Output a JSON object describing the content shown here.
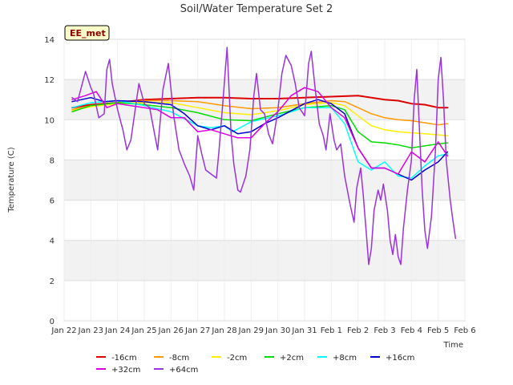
{
  "chart_data": {
    "type": "line",
    "title": "Soil/Water Temperature Set 2",
    "xlabel": "Time",
    "ylabel": "Temperature (C)",
    "badge": "EE_met",
    "ylim": [
      0,
      14
    ],
    "yticks": [
      0,
      2,
      4,
      6,
      8,
      10,
      12,
      14
    ],
    "xlim": [
      0,
      15
    ],
    "xticks": [
      {
        "v": 0,
        "label": "Jan 22"
      },
      {
        "v": 1,
        "label": "Jan 23"
      },
      {
        "v": 2,
        "label": "Jan 24"
      },
      {
        "v": 3,
        "label": "Jan 25"
      },
      {
        "v": 4,
        "label": "Jan 26"
      },
      {
        "v": 5,
        "label": "Jan 27"
      },
      {
        "v": 6,
        "label": "Jan 28"
      },
      {
        "v": 7,
        "label": "Jan 29"
      },
      {
        "v": 8,
        "label": "Jan 30"
      },
      {
        "v": 9,
        "label": "Jan 31"
      },
      {
        "v": 10,
        "label": "Feb 1"
      },
      {
        "v": 11,
        "label": "Feb 2"
      },
      {
        "v": 12,
        "label": "Feb 3"
      },
      {
        "v": 13,
        "label": "Feb 4"
      },
      {
        "v": 14,
        "label": "Feb 5"
      },
      {
        "v": 15,
        "label": "Feb 6"
      }
    ],
    "grid": true,
    "legend_position": "bottom",
    "series": [
      {
        "name": "-16cm",
        "color": "#dd0000",
        "width": 2,
        "points": [
          [
            0.3,
            10.6
          ],
          [
            1,
            10.75
          ],
          [
            2,
            10.85
          ],
          [
            3,
            11.0
          ],
          [
            4,
            11.05
          ],
          [
            5,
            11.1
          ],
          [
            6,
            11.1
          ],
          [
            7,
            11.05
          ],
          [
            8,
            11.05
          ],
          [
            9,
            11.1
          ],
          [
            10,
            11.15
          ],
          [
            11,
            11.2
          ],
          [
            12,
            11.0
          ],
          [
            12.5,
            10.95
          ],
          [
            13,
            10.8
          ],
          [
            13.5,
            10.75
          ],
          [
            14,
            10.6
          ],
          [
            14.35,
            10.6
          ]
        ]
      },
      {
        "name": "-8cm",
        "color": "#ff9900",
        "width": 1.5,
        "points": [
          [
            0.3,
            10.5
          ],
          [
            1,
            10.7
          ],
          [
            2,
            10.85
          ],
          [
            3,
            10.95
          ],
          [
            4,
            10.95
          ],
          [
            5,
            10.9
          ],
          [
            6,
            10.7
          ],
          [
            7,
            10.55
          ],
          [
            8,
            10.6
          ],
          [
            9,
            10.8
          ],
          [
            10,
            10.95
          ],
          [
            10.5,
            10.9
          ],
          [
            11,
            10.6
          ],
          [
            11.5,
            10.3
          ],
          [
            12,
            10.1
          ],
          [
            12.5,
            10.0
          ],
          [
            13,
            9.95
          ],
          [
            13.5,
            9.85
          ],
          [
            14,
            9.75
          ],
          [
            14.35,
            9.8
          ]
        ]
      },
      {
        "name": "-2cm",
        "color": "#ffee00",
        "width": 1.5,
        "points": [
          [
            0.3,
            10.45
          ],
          [
            1,
            10.65
          ],
          [
            2,
            10.8
          ],
          [
            3,
            10.85
          ],
          [
            4,
            10.85
          ],
          [
            5,
            10.6
          ],
          [
            6,
            10.35
          ],
          [
            7,
            10.25
          ],
          [
            8,
            10.45
          ],
          [
            9,
            10.75
          ],
          [
            10,
            10.85
          ],
          [
            10.5,
            10.7
          ],
          [
            11,
            10.2
          ],
          [
            11.5,
            9.7
          ],
          [
            12,
            9.5
          ],
          [
            12.5,
            9.4
          ],
          [
            13,
            9.35
          ],
          [
            13.5,
            9.3
          ],
          [
            14,
            9.25
          ],
          [
            14.35,
            9.2
          ]
        ]
      },
      {
        "name": "+2cm",
        "color": "#00dd00",
        "width": 1.5,
        "points": [
          [
            0.3,
            10.4
          ],
          [
            1,
            10.7
          ],
          [
            2,
            10.85
          ],
          [
            3,
            10.75
          ],
          [
            4,
            10.6
          ],
          [
            5,
            10.35
          ],
          [
            6,
            10.0
          ],
          [
            7,
            9.95
          ],
          [
            8,
            10.3
          ],
          [
            9,
            10.6
          ],
          [
            10,
            10.7
          ],
          [
            10.5,
            10.5
          ],
          [
            11,
            9.4
          ],
          [
            11.5,
            8.9
          ],
          [
            12,
            8.85
          ],
          [
            12.5,
            8.75
          ],
          [
            13,
            8.6
          ],
          [
            13.5,
            8.7
          ],
          [
            14,
            8.8
          ],
          [
            14.35,
            8.85
          ]
        ]
      },
      {
        "name": "+8cm",
        "color": "#00ffff",
        "width": 1.5,
        "points": [
          [
            0.3,
            10.6
          ],
          [
            1,
            10.85
          ],
          [
            2,
            10.95
          ],
          [
            3,
            10.7
          ],
          [
            4,
            10.4
          ],
          [
            5,
            9.7
          ],
          [
            5.5,
            9.6
          ],
          [
            6,
            9.7
          ],
          [
            6.3,
            9.4
          ],
          [
            7,
            9.9
          ],
          [
            8,
            10.2
          ],
          [
            9,
            10.6
          ],
          [
            10,
            10.6
          ],
          [
            10.5,
            9.8
          ],
          [
            11,
            7.9
          ],
          [
            11.5,
            7.5
          ],
          [
            12,
            7.9
          ],
          [
            12.5,
            7.2
          ],
          [
            13,
            7.1
          ],
          [
            13.5,
            7.7
          ],
          [
            14,
            8.2
          ],
          [
            14.35,
            8.3
          ]
        ]
      },
      {
        "name": "+16cm",
        "color": "#0000cc",
        "width": 1.5,
        "points": [
          [
            0.3,
            10.9
          ],
          [
            1,
            11.1
          ],
          [
            1.5,
            10.9
          ],
          [
            2,
            10.95
          ],
          [
            3,
            10.9
          ],
          [
            4,
            10.75
          ],
          [
            4.5,
            10.3
          ],
          [
            5,
            9.7
          ],
          [
            5.5,
            9.5
          ],
          [
            6,
            9.7
          ],
          [
            6.5,
            9.3
          ],
          [
            7,
            9.4
          ],
          [
            7.5,
            9.8
          ],
          [
            8,
            10.1
          ],
          [
            9,
            10.8
          ],
          [
            9.5,
            11.0
          ],
          [
            10,
            10.8
          ],
          [
            10.5,
            10.3
          ],
          [
            11,
            8.6
          ],
          [
            11.5,
            7.6
          ],
          [
            12,
            7.6
          ],
          [
            12.5,
            7.3
          ],
          [
            13,
            7.0
          ],
          [
            13.5,
            7.5
          ],
          [
            14,
            7.9
          ],
          [
            14.35,
            8.4
          ]
        ]
      },
      {
        "name": "+32cm",
        "color": "#dd00dd",
        "width": 1.5,
        "points": [
          [
            0.3,
            11.0
          ],
          [
            0.8,
            11.2
          ],
          [
            1.2,
            11.4
          ],
          [
            1.6,
            10.6
          ],
          [
            2,
            10.8
          ],
          [
            2.5,
            10.7
          ],
          [
            3,
            10.6
          ],
          [
            3.5,
            10.5
          ],
          [
            4,
            10.1
          ],
          [
            4.5,
            10.1
          ],
          [
            5,
            9.4
          ],
          [
            5.5,
            9.5
          ],
          [
            6,
            9.3
          ],
          [
            6.5,
            9.1
          ],
          [
            7,
            9.1
          ],
          [
            7.5,
            9.8
          ],
          [
            8,
            10.4
          ],
          [
            8.5,
            11.2
          ],
          [
            9,
            11.6
          ],
          [
            9.5,
            11.4
          ],
          [
            10,
            10.6
          ],
          [
            10.5,
            10.1
          ],
          [
            11,
            8.6
          ],
          [
            11.5,
            7.6
          ],
          [
            12,
            7.6
          ],
          [
            12.5,
            7.3
          ],
          [
            13,
            8.4
          ],
          [
            13.5,
            7.9
          ],
          [
            14,
            8.9
          ],
          [
            14.35,
            8.2
          ]
        ]
      },
      {
        "name": "+64cm",
        "color": "#9933dd",
        "width": 1.5,
        "points": [
          [
            0.3,
            11.1
          ],
          [
            0.5,
            10.9
          ],
          [
            0.8,
            12.4
          ],
          [
            1.0,
            11.6
          ],
          [
            1.1,
            11.3
          ],
          [
            1.3,
            10.1
          ],
          [
            1.5,
            10.3
          ],
          [
            1.6,
            12.5
          ],
          [
            1.7,
            13.0
          ],
          [
            1.8,
            11.8
          ],
          [
            2.0,
            10.5
          ],
          [
            2.2,
            9.5
          ],
          [
            2.35,
            8.5
          ],
          [
            2.5,
            9.0
          ],
          [
            2.8,
            11.8
          ],
          [
            3.0,
            10.8
          ],
          [
            3.2,
            10.6
          ],
          [
            3.4,
            9.2
          ],
          [
            3.5,
            8.5
          ],
          [
            3.7,
            11.5
          ],
          [
            3.9,
            12.8
          ],
          [
            4.1,
            10.2
          ],
          [
            4.3,
            8.5
          ],
          [
            4.5,
            7.8
          ],
          [
            4.7,
            7.2
          ],
          [
            4.85,
            6.5
          ],
          [
            5.0,
            9.2
          ],
          [
            5.15,
            8.3
          ],
          [
            5.3,
            7.5
          ],
          [
            5.5,
            7.3
          ],
          [
            5.7,
            7.1
          ],
          [
            5.8,
            8.5
          ],
          [
            5.95,
            11.0
          ],
          [
            6.1,
            13.6
          ],
          [
            6.25,
            9.3
          ],
          [
            6.35,
            7.8
          ],
          [
            6.5,
            6.5
          ],
          [
            6.6,
            6.4
          ],
          [
            6.8,
            7.2
          ],
          [
            6.95,
            8.5
          ],
          [
            7.1,
            11.2
          ],
          [
            7.2,
            12.3
          ],
          [
            7.35,
            10.5
          ],
          [
            7.5,
            10.3
          ],
          [
            7.65,
            9.3
          ],
          [
            7.8,
            8.8
          ],
          [
            7.9,
            9.6
          ],
          [
            8.0,
            10.5
          ],
          [
            8.15,
            12.3
          ],
          [
            8.3,
            13.2
          ],
          [
            8.5,
            12.7
          ],
          [
            8.65,
            11.8
          ],
          [
            8.8,
            10.6
          ],
          [
            9.0,
            10.2
          ],
          [
            9.15,
            12.8
          ],
          [
            9.25,
            13.4
          ],
          [
            9.4,
            11.5
          ],
          [
            9.55,
            9.8
          ],
          [
            9.7,
            9.2
          ],
          [
            9.8,
            8.5
          ],
          [
            9.95,
            10.3
          ],
          [
            10.1,
            9.0
          ],
          [
            10.2,
            8.5
          ],
          [
            10.35,
            8.8
          ],
          [
            10.5,
            7.2
          ],
          [
            10.7,
            5.8
          ],
          [
            10.85,
            4.9
          ],
          [
            10.95,
            6.6
          ],
          [
            11.1,
            7.6
          ],
          [
            11.2,
            6.2
          ],
          [
            11.3,
            4.5
          ],
          [
            11.4,
            2.8
          ],
          [
            11.5,
            3.6
          ],
          [
            11.6,
            5.5
          ],
          [
            11.75,
            6.5
          ],
          [
            11.85,
            6.0
          ],
          [
            11.95,
            6.8
          ],
          [
            12.1,
            5.5
          ],
          [
            12.2,
            4.0
          ],
          [
            12.3,
            3.3
          ],
          [
            12.4,
            4.3
          ],
          [
            12.5,
            3.2
          ],
          [
            12.6,
            2.8
          ],
          [
            12.7,
            4.6
          ],
          [
            12.85,
            6.5
          ],
          [
            13.0,
            8.0
          ],
          [
            13.1,
            11.0
          ],
          [
            13.2,
            12.5
          ],
          [
            13.3,
            9.5
          ],
          [
            13.4,
            6.5
          ],
          [
            13.5,
            4.5
          ],
          [
            13.6,
            3.6
          ],
          [
            13.75,
            5.2
          ],
          [
            13.9,
            8.5
          ],
          [
            14.0,
            12.0
          ],
          [
            14.1,
            13.1
          ],
          [
            14.2,
            11.0
          ],
          [
            14.3,
            8.0
          ],
          [
            14.45,
            6.0
          ],
          [
            14.55,
            5.0
          ],
          [
            14.65,
            4.1
          ]
        ]
      }
    ]
  }
}
